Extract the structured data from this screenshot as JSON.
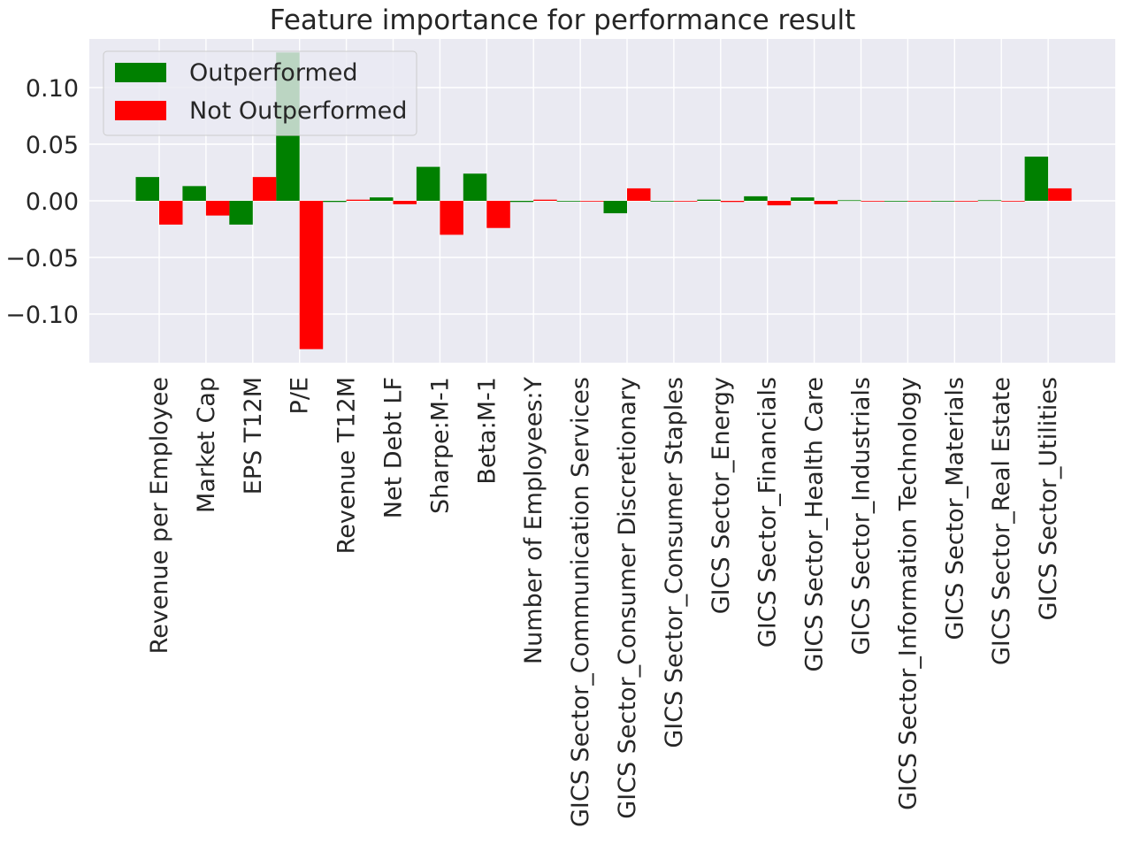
{
  "chart_data": {
    "type": "bar",
    "title": "Feature importance for performance result",
    "xlabel": "",
    "ylabel": "",
    "categories": [
      "Revenue per Employee",
      "Market Cap",
      "EPS T12M",
      "P/E",
      "Revenue T12M",
      "Net Debt LF",
      "Sharpe:M-1",
      "Beta:M-1",
      "Number of Employees:Y",
      "GICS Sector_Communication Services",
      "GICS Sector_Consumer Discretionary",
      "GICS Sector_Consumer Staples",
      "GICS Sector_Energy",
      "GICS Sector_Financials",
      "GICS Sector_Health Care",
      "GICS Sector_Industrials",
      "GICS Sector_Information Technology",
      "GICS Sector_Materials",
      "GICS Sector_Real Estate",
      "GICS Sector_Utilities"
    ],
    "series": [
      {
        "name": "Outperformed",
        "color": "#008000",
        "values": [
          0.021,
          0.013,
          -0.021,
          0.131,
          -0.001,
          0.003,
          0.03,
          0.024,
          -0.001,
          0.0,
          -0.011,
          0.0,
          0.001,
          0.004,
          0.003,
          0.0005,
          0.0,
          0.0,
          0.0005,
          0.039
        ]
      },
      {
        "name": "Not Outperformed",
        "color": "#ff0000",
        "values": [
          -0.021,
          -0.013,
          0.021,
          -0.131,
          0.001,
          -0.003,
          -0.03,
          -0.024,
          0.001,
          0.0,
          0.011,
          0.0,
          -0.001,
          -0.004,
          -0.003,
          -0.0005,
          0.0,
          0.0,
          -0.0005,
          0.011
        ]
      }
    ],
    "yticks": [
      {
        "value": 0.1,
        "label": "0.10"
      },
      {
        "value": 0.05,
        "label": "0.05"
      },
      {
        "value": 0.0,
        "label": "0.00"
      },
      {
        "value": -0.05,
        "label": "−0.05"
      },
      {
        "value": -0.1,
        "label": "−0.10"
      }
    ],
    "ylim": [
      -0.143,
      0.143
    ],
    "grid": true,
    "legend": {
      "position": "upper-left",
      "entries": [
        "Outperformed",
        "Not Outperformed"
      ]
    }
  }
}
